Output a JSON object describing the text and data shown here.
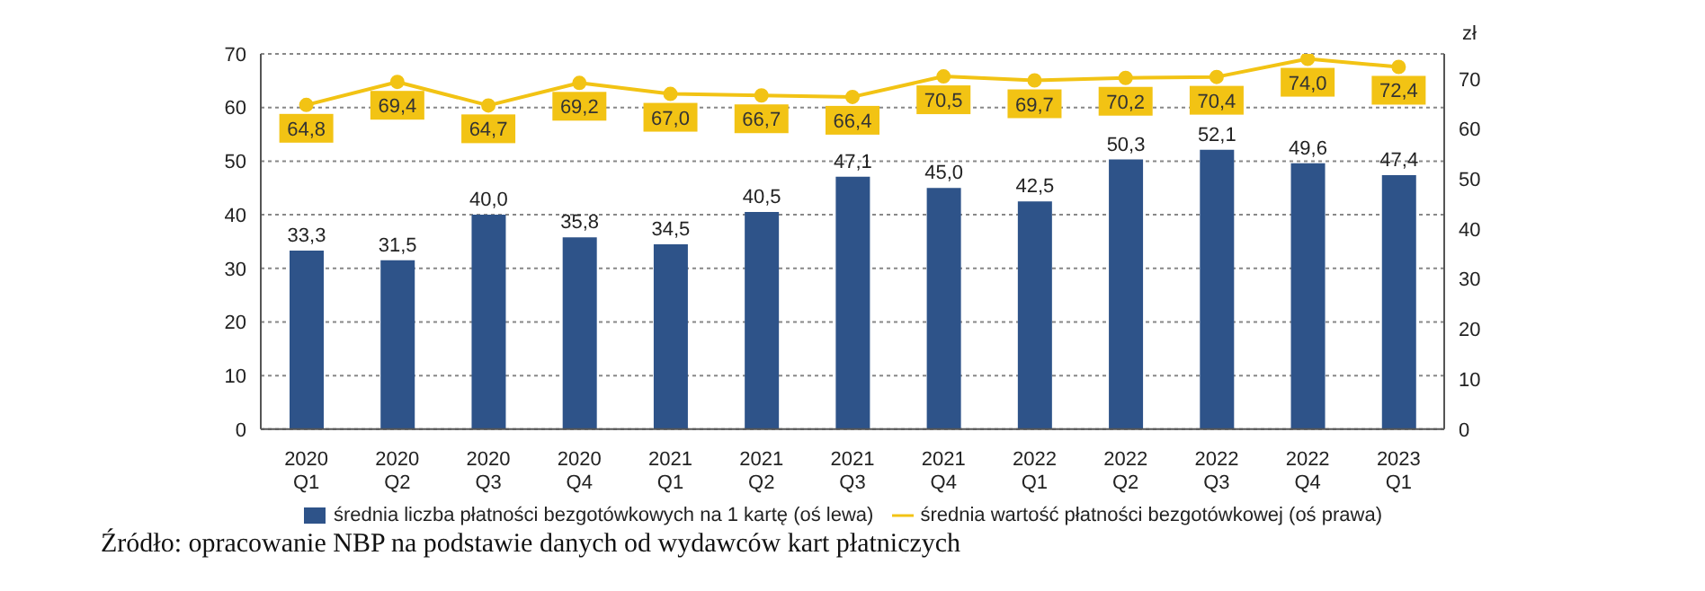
{
  "chart_data": {
    "type": "bar",
    "categories": [
      "2020 Q1",
      "2020 Q2",
      "2020 Q3",
      "2020 Q4",
      "2021 Q1",
      "2021 Q2",
      "2021 Q3",
      "2021 Q4",
      "2022 Q1",
      "2022 Q2",
      "2022 Q3",
      "2022 Q4",
      "2023 Q1"
    ],
    "series": [
      {
        "name": "średnia liczba płatności bezgotówkowych na 1 kartę (oś lewa)",
        "color": "#2e5389",
        "values": [
          33.3,
          31.5,
          40.0,
          35.8,
          34.5,
          40.5,
          47.1,
          45.0,
          42.5,
          50.3,
          52.1,
          49.6,
          47.4
        ],
        "value_labels": [
          "33,3",
          "31,5",
          "40,0",
          "35,8",
          "34,5",
          "40,5",
          "47,1",
          "45,0",
          "42,5",
          "50,3",
          "52,1",
          "49,6",
          "47,4"
        ]
      },
      {
        "name": "średnia wartość  płatności bezgotówkowej (oś prawa)",
        "type": "line",
        "axis": "y2",
        "color": "#f2c314",
        "values": [
          64.8,
          69.4,
          64.7,
          69.2,
          67.0,
          66.7,
          66.4,
          70.5,
          69.7,
          70.2,
          70.4,
          74.0,
          72.4
        ],
        "value_labels": [
          "64,8",
          "69,4",
          "64,7",
          "69,2",
          "67,0",
          "66,7",
          "66,4",
          "70,5",
          "69,7",
          "70,2",
          "70,4",
          "74,0",
          "72,4"
        ]
      }
    ],
    "ylim": [
      0,
      70
    ],
    "yticks": [
      0,
      10,
      20,
      30,
      40,
      50,
      60,
      70
    ],
    "y2lim": [
      0,
      75
    ],
    "y2ticks": [
      0,
      10,
      20,
      30,
      40,
      50,
      60,
      70
    ],
    "y2label": "zł",
    "grid": "y",
    "legend": "bottom",
    "marker": "circle",
    "annotations": [
      "Źródło: opracowanie NBP na podstawie danych od wydawców kart płatniczych"
    ]
  }
}
